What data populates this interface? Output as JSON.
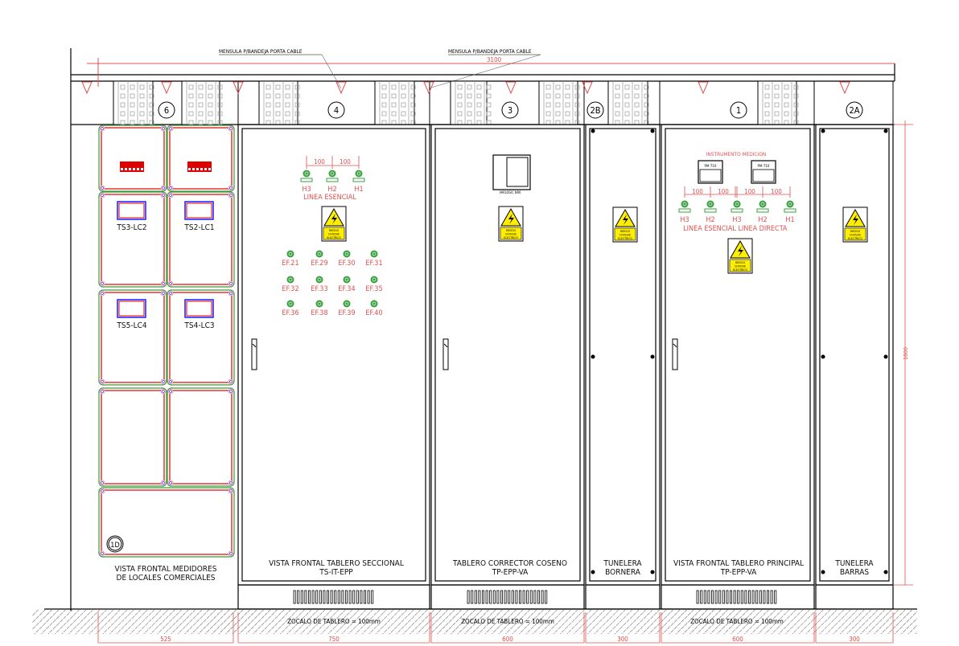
{
  "drawing": {
    "overall_dimension": "3100",
    "height_dimension": "1800",
    "leader_notes": [
      "MENSULA P/BANDEJA PORTA CABLE",
      "MENSULA P/BANDEJA PORTA CABLE"
    ],
    "panel_tags": [
      "6",
      "4",
      "3",
      "2B",
      "1",
      "2A"
    ],
    "plinth_note": "ZOCALO DE TABLERO = 100mm",
    "bottom_dimensions": [
      "525",
      "750",
      "600",
      "300",
      "600",
      "300"
    ]
  },
  "meters_cabinet": {
    "meter_labels": [
      "TS3-LC2",
      "TS2-LC1",
      "TS5-LC4",
      "TS4-LC3"
    ],
    "tag": "1D",
    "title_line1": "VISTA FRONTAL MEDIDORES",
    "title_line2": "DE LOCALES COMERCIALES"
  },
  "sectional_panel": {
    "spacing_labels": [
      "100",
      "100"
    ],
    "pilot_labels": [
      "H3",
      "H2",
      "H1"
    ],
    "line_label": "LINEA ESENCIAL",
    "feeder_labels": [
      "EF.21",
      "EF.29",
      "EF.30",
      "EF.31",
      "EF.32",
      "EF.33",
      "EF.34",
      "EF.35",
      "EF.36",
      "EF.38",
      "EF.39",
      "EF.40"
    ],
    "title_line1": "VISTA FRONTAL TABLERO SECCIONAL",
    "title_line2": "TS-IT-EPP"
  },
  "corrector_panel": {
    "meter_label": "VARLOGIC NR6",
    "title_line1": "TABLERO CORRECTOR COSENO",
    "title_line2": "TP-EPP-VA"
  },
  "bornera_tunnel": {
    "title_line1": "TUNELERA",
    "title_line2": "BORNERA"
  },
  "principal_panel": {
    "instrument_label": "INSTRUMENTO MEDICION",
    "meter_labels": [
      "PM 710",
      "PM 710"
    ],
    "spacing_labels": [
      "100",
      "100",
      "100",
      "100"
    ],
    "pilot_labels": [
      "H3",
      "H2",
      "H3",
      "H2",
      "H1"
    ],
    "line_labels": [
      "LINEA ESENCIAL",
      "LINEA DIRECTA"
    ],
    "title_line1": "VISTA FRONTAL TABLERO PRINCIPAL",
    "title_line2": "TP-EPP-VA"
  },
  "barras_tunnel": {
    "title_line1": "TUNELERA",
    "title_line2": "BARRAS"
  },
  "warning_sign": {
    "lines": [
      "RIESGO",
      "CHOQUE",
      "ELECTRICO"
    ]
  },
  "colors": {
    "dimension": "#e05050",
    "outline": "#000000",
    "pilot_light": "#3aa040",
    "meter_frame": "#1a1aff",
    "cell_red": "#e00000",
    "cell_green": "#3a9a3a",
    "sign_yellow": "#ffee00"
  }
}
